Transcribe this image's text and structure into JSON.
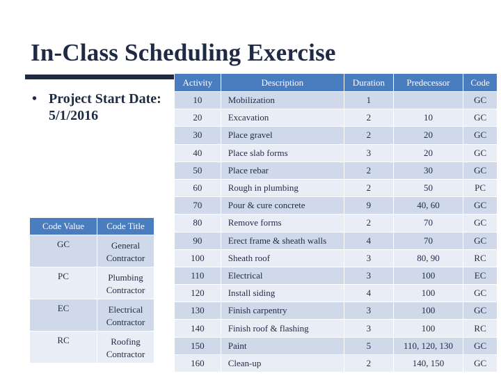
{
  "title": "In-Class Scheduling Exercise",
  "bullet": {
    "label": "Project Start Date:",
    "date": "5/1/2016"
  },
  "schedule": {
    "headers": [
      "Activity",
      "Description",
      "Duration",
      "Predecessor",
      "Code"
    ],
    "rows": [
      [
        "10",
        "Mobilization",
        "1",
        "",
        "GC"
      ],
      [
        "20",
        "Excavation",
        "2",
        "10",
        "GC"
      ],
      [
        "30",
        "Place gravel",
        "2",
        "20",
        "GC"
      ],
      [
        "40",
        "Place slab forms",
        "3",
        "20",
        "GC"
      ],
      [
        "50",
        "Place rebar",
        "2",
        "30",
        "GC"
      ],
      [
        "60",
        "Rough in plumbing",
        "2",
        "50",
        "PC"
      ],
      [
        "70",
        "Pour & cure concrete",
        "9",
        "40, 60",
        "GC"
      ],
      [
        "80",
        "Remove forms",
        "2",
        "70",
        "GC"
      ],
      [
        "90",
        "Erect frame & sheath walls",
        "4",
        "70",
        "GC"
      ],
      [
        "100",
        "Sheath roof",
        "3",
        "80, 90",
        "RC"
      ],
      [
        "110",
        "Electrical",
        "3",
        "100",
        "EC"
      ],
      [
        "120",
        "Install siding",
        "4",
        "100",
        "GC"
      ],
      [
        "130",
        "Finish carpentry",
        "3",
        "100",
        "GC"
      ],
      [
        "140",
        "Finish roof & flashing",
        "3",
        "100",
        "RC"
      ],
      [
        "150",
        "Paint",
        "5",
        "110, 120, 130",
        "GC"
      ],
      [
        "160",
        "Clean-up",
        "2",
        "140, 150",
        "GC"
      ]
    ]
  },
  "codes": {
    "headers": [
      "Code Value",
      "Code Title"
    ],
    "rows": [
      [
        "GC",
        "General\nContractor"
      ],
      [
        "PC",
        "Plumbing\nContractor"
      ],
      [
        "EC",
        "Electrical\nContractor"
      ],
      [
        "RC",
        "Roofing\nContractor"
      ]
    ]
  },
  "colors": {
    "header_fill": "#4a7cc0",
    "row_dark": "#cfd9ea",
    "row_light": "#e9eef6",
    "title_text": "#1f2a44"
  }
}
